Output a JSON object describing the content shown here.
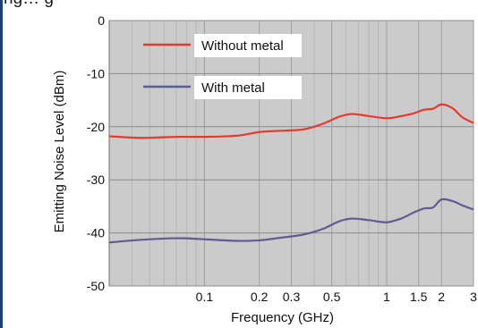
{
  "top_text": "ng… g",
  "chart_data": {
    "type": "line",
    "title": "",
    "xlabel": "Frequency (GHz)",
    "ylabel": "Emitting Noise Level (dBm)",
    "xscale": "log",
    "xlim": [
      0.03,
      3
    ],
    "ylim": [
      -50,
      0
    ],
    "x_ticks": [
      0.1,
      0.2,
      0.3,
      0.5,
      1,
      1.5,
      2,
      3
    ],
    "x_tick_labels": [
      "0.1",
      "0.2",
      "0.3",
      "0.5",
      "1",
      "1.5",
      "2",
      "3"
    ],
    "y_ticks": [
      0,
      -10,
      -20,
      -30,
      -40,
      -50
    ],
    "y_tick_labels": [
      "0",
      "-10",
      "-20",
      "-30",
      "-40",
      "-50"
    ],
    "grid": true,
    "legend_position": "top-left",
    "series": [
      {
        "name": "Without metal",
        "color": "#e8392f",
        "x": [
          0.03,
          0.045,
          0.07,
          0.1,
          0.15,
          0.2,
          0.25,
          0.35,
          0.45,
          0.55,
          0.65,
          0.8,
          1,
          1.2,
          1.4,
          1.6,
          1.8,
          2,
          2.3,
          2.6,
          3
        ],
        "y": [
          -21.8,
          -22.1,
          -21.9,
          -21.9,
          -21.7,
          -21.0,
          -20.8,
          -20.5,
          -19.4,
          -18.1,
          -17.6,
          -18.0,
          -18.4,
          -18.0,
          -17.5,
          -16.8,
          -16.6,
          -15.8,
          -16.5,
          -18.2,
          -19.3
        ]
      },
      {
        "name": "With metal",
        "color": "#5f5c94",
        "x": [
          0.03,
          0.045,
          0.07,
          0.1,
          0.15,
          0.2,
          0.25,
          0.35,
          0.45,
          0.55,
          0.65,
          0.8,
          1,
          1.2,
          1.4,
          1.6,
          1.8,
          2,
          2.3,
          2.6,
          3
        ],
        "y": [
          -41.8,
          -41.3,
          -41.0,
          -41.2,
          -41.5,
          -41.4,
          -41.0,
          -40.3,
          -39.2,
          -37.8,
          -37.3,
          -37.6,
          -38.0,
          -37.3,
          -36.2,
          -35.4,
          -35.2,
          -33.7,
          -34.0,
          -34.8,
          -35.6
        ]
      }
    ]
  }
}
